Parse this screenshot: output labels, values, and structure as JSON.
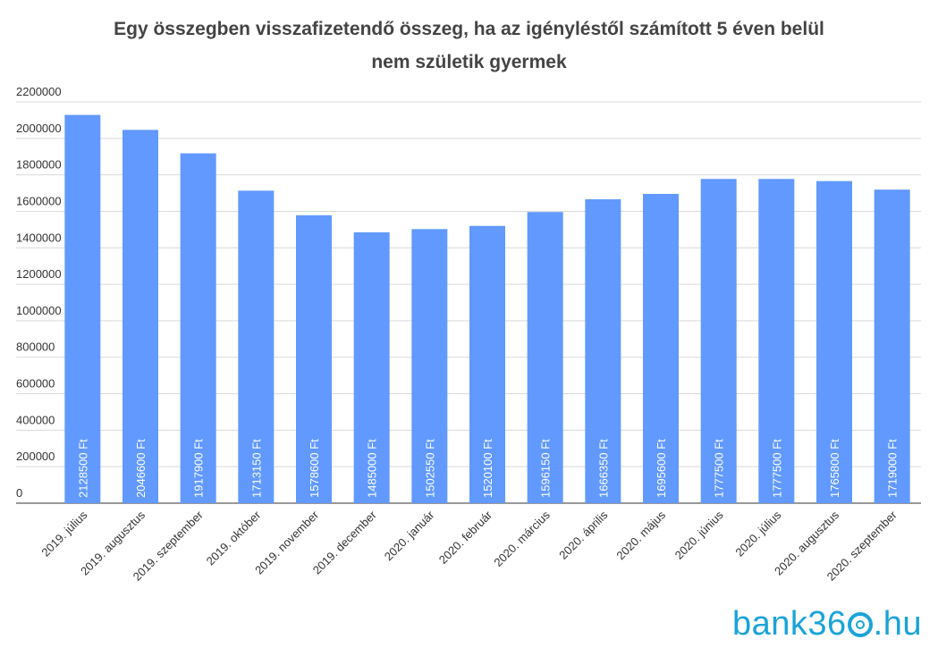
{
  "title_line1": "Egy összegben visszafizetendő összeg, ha az igényléstől számított 5 éven belül",
  "title_line2": "nem születik gyermek",
  "logo": {
    "prefix": "bank36",
    "suffix": ".hu"
  },
  "colors": {
    "bar": "#6199ff",
    "grid": "#d9d9d9",
    "axis": "#333333",
    "label": "#ffffff"
  },
  "chart_data": {
    "type": "bar",
    "categories": [
      "2019. július",
      "2019. augusztus",
      "2019. szeptember",
      "2019. október",
      "2019. november",
      "2019. december",
      "2020. január",
      "2020. február",
      "2020. március",
      "2020. április",
      "2020. május",
      "2020. június",
      "2020. július",
      "2020. augusztus",
      "2020. szeptember"
    ],
    "values": [
      2128500,
      2046600,
      1917900,
      1713150,
      1578600,
      1485000,
      1502550,
      1520100,
      1596150,
      1666350,
      1695600,
      1777500,
      1777500,
      1765800,
      1719000
    ],
    "data_labels": [
      "2128500 Ft",
      "2046600 Ft",
      "1917900 Ft",
      "1713150 Ft",
      "1578600 Ft",
      "1485000 Ft",
      "1502550 Ft",
      "1520100 Ft",
      "1596150 Ft",
      "1666350 Ft",
      "1695600 Ft",
      "1777500 Ft",
      "1777500 Ft",
      "1765800 Ft",
      "1719000 Ft"
    ],
    "yticks": [
      "0",
      "200000",
      "400000",
      "600000",
      "800000",
      "1000000",
      "1200000",
      "1400000",
      "1600000",
      "1800000",
      "2000000",
      "2200000"
    ],
    "ylim": [
      0,
      2200000
    ],
    "grid": true,
    "legend": "none"
  }
}
